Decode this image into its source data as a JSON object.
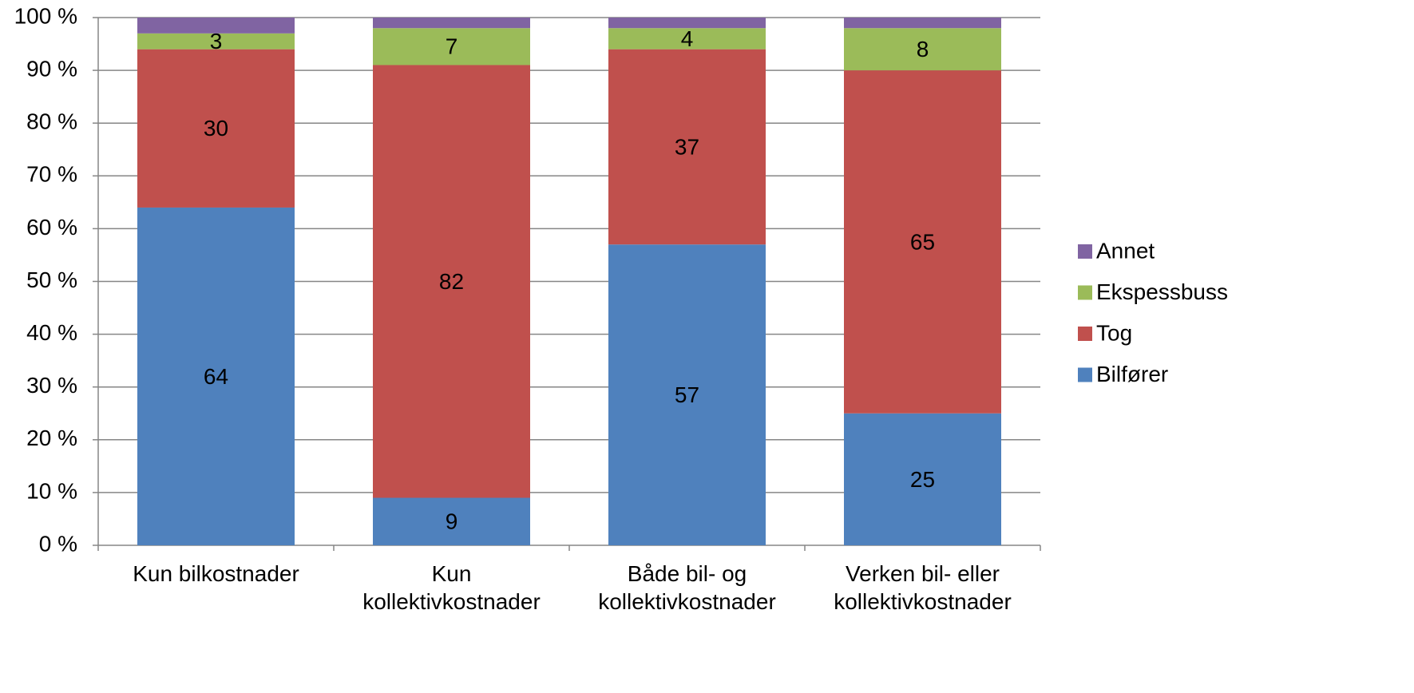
{
  "chart_data": {
    "type": "stacked_bar",
    "categories": [
      "Kun bilkostnader",
      "Kun\nkollektivkostnader",
      "Både bil- og\nkollektivkostnader",
      "Verken bil- eller\nkollektivkostnader"
    ],
    "series": [
      {
        "name": "Bilfører",
        "color": "#4f81bd",
        "values": [
          64,
          9,
          57,
          25
        ],
        "data_labels": true
      },
      {
        "name": "Tog",
        "color": "#c0504d",
        "values": [
          30,
          82,
          37,
          65
        ],
        "data_labels": true
      },
      {
        "name": "Ekspessbuss",
        "color": "#9bbb59",
        "values": [
          3,
          7,
          4,
          8
        ],
        "data_labels": true
      },
      {
        "name": "Annet",
        "color": "#8064a2",
        "values": [
          3,
          2,
          2,
          2
        ],
        "data_labels": false
      }
    ],
    "ylim": [
      0,
      100
    ],
    "yticks": [
      {
        "value": 0,
        "label": "0 %"
      },
      {
        "value": 10,
        "label": "10 %"
      },
      {
        "value": 20,
        "label": "20 %"
      },
      {
        "value": 30,
        "label": "30 %"
      },
      {
        "value": 40,
        "label": "40 %"
      },
      {
        "value": 50,
        "label": "50 %"
      },
      {
        "value": 60,
        "label": "60 %"
      },
      {
        "value": 70,
        "label": "70 %"
      },
      {
        "value": 80,
        "label": "80 %"
      },
      {
        "value": 90,
        "label": "90 %"
      },
      {
        "value": 100,
        "label": "100 %"
      }
    ],
    "grid": true,
    "legend": "right"
  }
}
